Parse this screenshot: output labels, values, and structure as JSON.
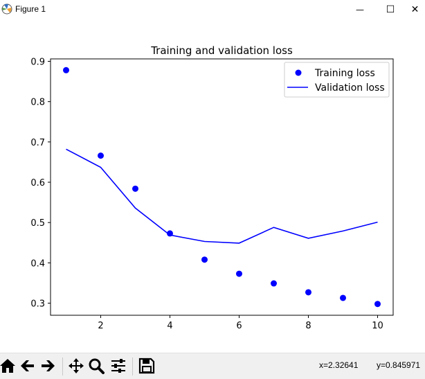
{
  "window": {
    "title": "Figure 1",
    "minimize_glyph": "—",
    "maximize_glyph": "☐",
    "close_glyph": "✕"
  },
  "toolbar": {
    "icons": [
      "home-icon",
      "back-icon",
      "forward-icon",
      "pan-icon",
      "zoom-icon",
      "configure-subplots-icon",
      "save-icon"
    ],
    "x_readout": "x=2.32641",
    "y_readout": "y=0.845971"
  },
  "chart_data": {
    "type": "line",
    "title": "Training and validation loss",
    "xlabel": "",
    "ylabel": "",
    "x": [
      1,
      2,
      3,
      4,
      5,
      6,
      7,
      8,
      9,
      10
    ],
    "series": [
      {
        "name": "Training loss",
        "style": "points",
        "color": "#0000ff",
        "values": [
          0.878,
          0.666,
          0.584,
          0.473,
          0.408,
          0.373,
          0.349,
          0.327,
          0.313,
          0.298
        ]
      },
      {
        "name": "Validation loss",
        "style": "line",
        "color": "#0000ff",
        "values": [
          0.682,
          0.637,
          0.536,
          0.469,
          0.453,
          0.449,
          0.488,
          0.461,
          0.479,
          0.501
        ]
      }
    ],
    "xlim": [
      0.55,
      10.45
    ],
    "ylim": [
      0.27,
      0.906
    ],
    "xticks": [
      "2",
      "4",
      "6",
      "8",
      "10"
    ],
    "xtick_values": [
      2,
      4,
      6,
      8,
      10
    ],
    "yticks": [
      "0.3",
      "0.4",
      "0.5",
      "0.6",
      "0.7",
      "0.8",
      "0.9"
    ],
    "ytick_values": [
      0.3,
      0.4,
      0.5,
      0.6,
      0.7,
      0.8,
      0.9
    ],
    "legend_position": "top-right",
    "grid": false
  }
}
